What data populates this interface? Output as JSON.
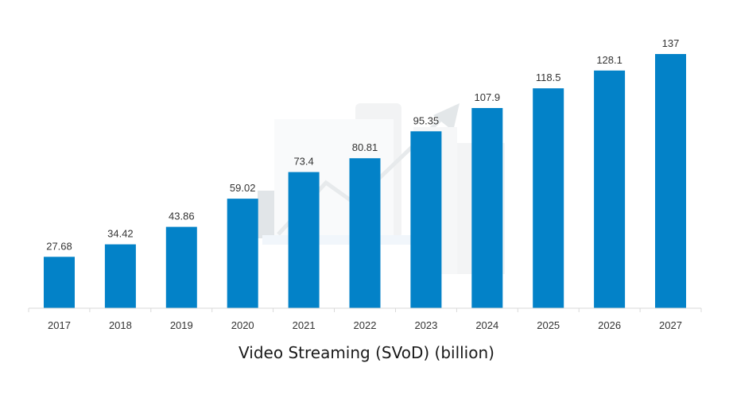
{
  "chart_data": {
    "type": "bar",
    "categories": [
      "2017",
      "2018",
      "2019",
      "2020",
      "2021",
      "2022",
      "2023",
      "2024",
      "2025",
      "2026",
      "2027"
    ],
    "values": [
      27.68,
      34.42,
      43.86,
      59.02,
      73.4,
      80.81,
      95.35,
      107.9,
      118.5,
      128.1,
      137
    ],
    "value_labels": [
      "27.68",
      "34.42",
      "43.86",
      "59.02",
      "73.4",
      "80.81",
      "95.35",
      "107.9",
      "118.5",
      "128.1",
      "137"
    ],
    "xlabel": "Video Streaming (SVoD) (billion)",
    "ylim": [
      0,
      150
    ],
    "grid": false,
    "bar_color": "#0382c8",
    "axis_color": "#d9d9d9"
  },
  "watermark": {
    "icon": "statista-chart-watermark-icon"
  }
}
